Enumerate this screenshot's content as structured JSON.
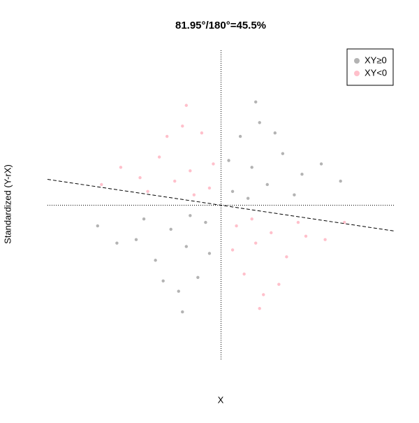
{
  "chart_data": {
    "type": "scatter",
    "title": "81.95°/180°=45.5%",
    "x_label": "X",
    "y_label": "Standardized (Y-rX)",
    "xlim": [
      -4.5,
      4.5
    ],
    "ylim": [
      -4.5,
      4.5
    ],
    "xticks": [],
    "yticks": [],
    "reference_x": 0,
    "reference_y": 0,
    "regression": {
      "intercept": 0,
      "slope": -0.167
    },
    "legend": "topright",
    "series": [
      {
        "name": "XY≥0",
        "color": "#b3b3b3",
        "x": [
          0.3,
          0.8,
          1.2,
          1.6,
          2.1,
          0.5,
          1.0,
          1.9,
          2.6,
          0.2,
          0.7,
          1.4,
          3.1,
          0.9,
          -0.4,
          -0.9,
          -1.3,
          -1.7,
          -2.2,
          -0.6,
          -1.1,
          -2.0,
          -2.7,
          -0.3,
          -0.8,
          -1.5,
          -3.2,
          -1.0
        ],
        "values": [
          0.4,
          1.1,
          0.6,
          1.5,
          0.9,
          2.0,
          2.4,
          0.3,
          1.2,
          1.3,
          0.2,
          2.1,
          0.7,
          3.0,
          -0.5,
          -1.2,
          -0.7,
          -1.6,
          -1.0,
          -2.1,
          -2.5,
          -0.4,
          -1.1,
          -1.4,
          -0.3,
          -2.2,
          -0.6,
          -3.1
        ]
      },
      {
        "name": "XY<0",
        "color": "#ffc0cb",
        "x": [
          -0.3,
          -0.8,
          -1.2,
          -1.6,
          -2.1,
          -0.5,
          -1.0,
          -1.9,
          -2.6,
          -0.2,
          -0.7,
          -1.4,
          -3.1,
          -0.9,
          0.4,
          0.9,
          1.3,
          1.7,
          2.2,
          0.6,
          1.1,
          2.0,
          2.7,
          0.3,
          0.8,
          1.5,
          3.2,
          1.0
        ],
        "values": [
          0.5,
          1.0,
          0.7,
          1.4,
          0.8,
          2.1,
          2.3,
          0.4,
          1.1,
          1.2,
          0.3,
          2.0,
          0.6,
          2.9,
          -0.6,
          -1.1,
          -0.8,
          -1.5,
          -0.9,
          -2.0,
          -2.6,
          -0.5,
          -1.0,
          -1.3,
          -0.4,
          -2.3,
          -0.5,
          -3.0
        ]
      }
    ]
  }
}
